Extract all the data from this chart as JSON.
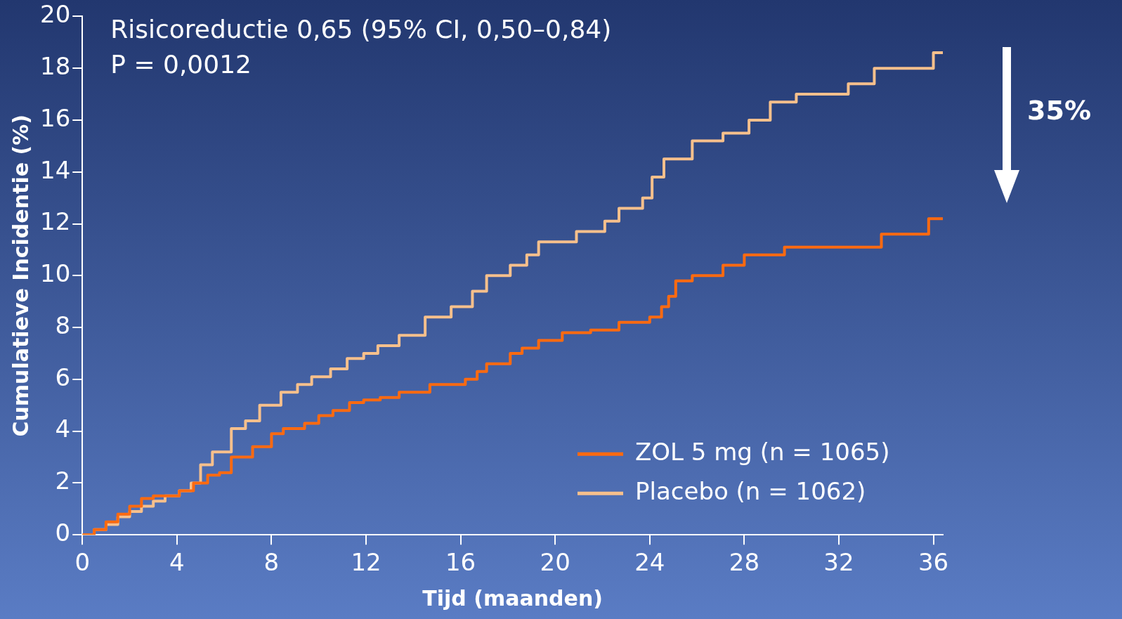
{
  "chart_data": {
    "type": "step",
    "xlabel": "Tijd (maanden)",
    "ylabel": "Cumulatieve Incidentie (%)",
    "annotations": [
      "Risicoreductie 0,65 (95% CI, 0,50–0,84)",
      "P = 0,0012",
      "35%"
    ],
    "xlim": [
      0,
      36.4
    ],
    "xticks": [
      0,
      4,
      8,
      12,
      16,
      20,
      24,
      28,
      32,
      36
    ],
    "ylim": [
      0,
      20
    ],
    "yticks": [
      0,
      2,
      4,
      6,
      8,
      10,
      12,
      14,
      16,
      18,
      20
    ],
    "grid": false,
    "legend": "bottom right",
    "series": [
      {
        "name": "ZOL 5 mg (n = 1065)",
        "color": "#ff6a10",
        "x": [
          0,
          0.5,
          1,
          1.5,
          2,
          2.5,
          3,
          3.5,
          4.1,
          4.7,
          5.3,
          5.8,
          6.3,
          7.2,
          8,
          8.5,
          9.4,
          10,
          10.6,
          11.3,
          11.9,
          12.6,
          13.4,
          14.7,
          16.2,
          16.7,
          17.1,
          18.1,
          18.6,
          19.3,
          20.3,
          21.5,
          22.7,
          24,
          24.5,
          24.8,
          25.1,
          25.8,
          27.1,
          28,
          29.7,
          33.8,
          35.8,
          36.4
        ],
        "values": [
          0,
          0.2,
          0.5,
          0.8,
          1.1,
          1.4,
          1.5,
          1.5,
          1.7,
          2,
          2.3,
          2.4,
          3,
          3.4,
          3.9,
          4.1,
          4.3,
          4.6,
          4.8,
          5.1,
          5.2,
          5.3,
          5.5,
          5.8,
          6,
          6.3,
          6.6,
          7,
          7.2,
          7.5,
          7.8,
          7.9,
          8.2,
          8.4,
          8.8,
          9.2,
          9.8,
          10,
          10.4,
          10.8,
          11.1,
          11.6,
          12.2,
          12.2
        ]
      },
      {
        "name": "Placebo (n = 1062)",
        "color": "#f7c08c",
        "x": [
          0,
          0.5,
          1,
          1.5,
          2,
          2.5,
          3,
          3.5,
          4.1,
          4.6,
          5,
          5.5,
          6.3,
          6.9,
          7.5,
          8.4,
          9.1,
          9.7,
          10.5,
          11.2,
          11.9,
          12.5,
          13.4,
          14.5,
          15.6,
          16.5,
          17.1,
          18.1,
          18.8,
          19.3,
          20.9,
          22.1,
          22.7,
          23.7,
          24.1,
          24.6,
          25.8,
          27.1,
          28.2,
          29.1,
          30.2,
          32.4,
          33.5,
          36,
          36.4
        ],
        "values": [
          0,
          0.2,
          0.4,
          0.7,
          0.9,
          1.1,
          1.3,
          1.5,
          1.7,
          2,
          2.7,
          3.2,
          4.1,
          4.4,
          5,
          5.5,
          5.8,
          6.1,
          6.4,
          6.8,
          7,
          7.3,
          7.7,
          8.4,
          8.8,
          9.4,
          10,
          10.4,
          10.8,
          11.3,
          11.7,
          12.1,
          12.6,
          13,
          13.8,
          14.5,
          15.2,
          15.5,
          16,
          16.7,
          17,
          17.4,
          18,
          18.6,
          18.6
        ]
      }
    ]
  }
}
